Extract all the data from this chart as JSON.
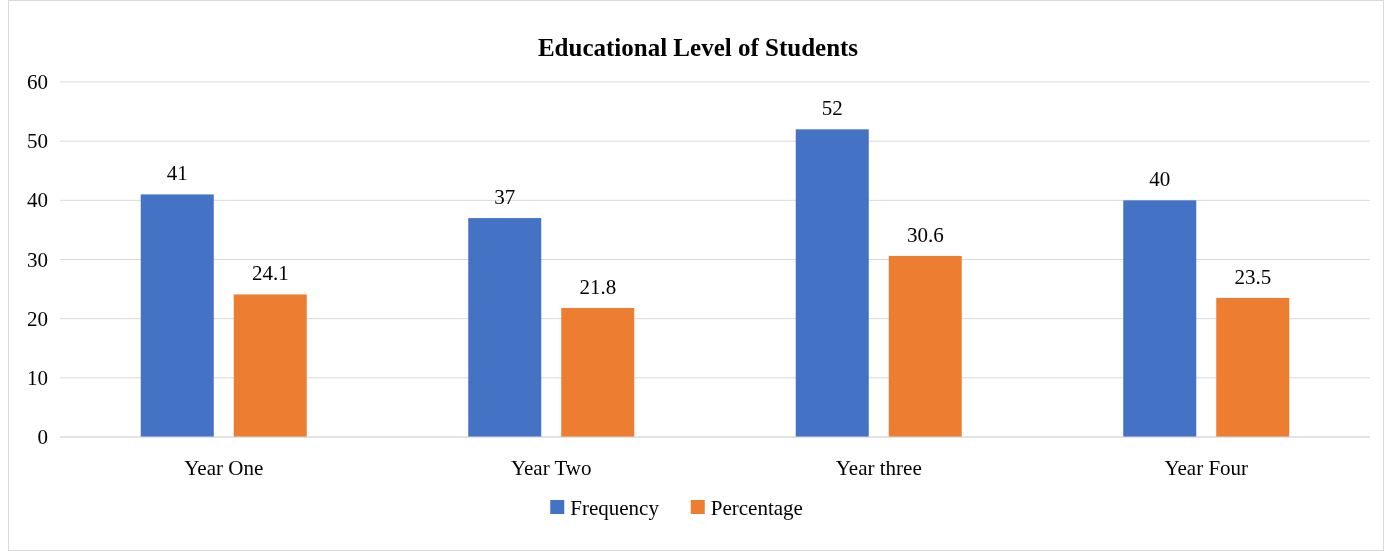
{
  "chart_data": {
    "type": "bar",
    "title": "Educational Level of Students",
    "categories": [
      "Year One",
      "Year Two",
      "Year three",
      "Year Four"
    ],
    "series": [
      {
        "name": "Frequency",
        "color": "#4472c4",
        "values": [
          41,
          37,
          52,
          40
        ]
      },
      {
        "name": "Percentage",
        "color": "#ed7d31",
        "values": [
          24.1,
          21.8,
          30.6,
          23.5
        ]
      }
    ],
    "ylim": [
      0,
      60
    ],
    "yticks": [
      0,
      10,
      20,
      30,
      40,
      50,
      60
    ],
    "grid": "y",
    "legend": "bottom",
    "data_labels": true
  }
}
